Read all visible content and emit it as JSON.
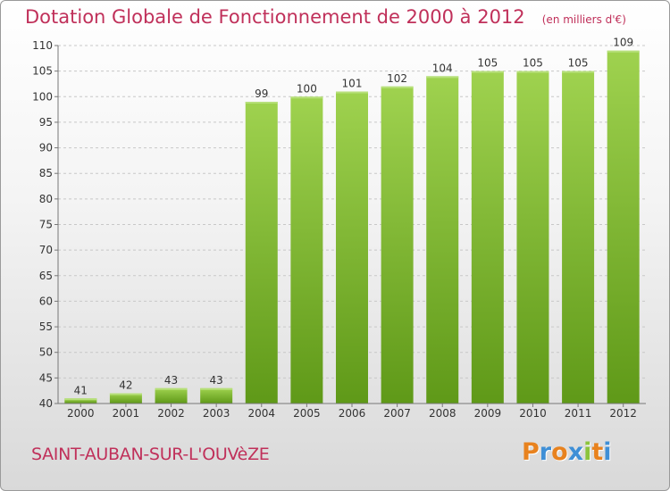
{
  "chart_data": {
    "type": "bar",
    "title": "Dotation Globale de Fonctionnement de 2000 à 2012",
    "unit": "(en milliers d'€)",
    "categories": [
      "2000",
      "2001",
      "2002",
      "2003",
      "2004",
      "2005",
      "2006",
      "2007",
      "2008",
      "2009",
      "2010",
      "2011",
      "2012"
    ],
    "values": [
      41,
      42,
      43,
      43,
      99,
      100,
      101,
      102,
      104,
      105,
      105,
      105,
      109
    ],
    "ylim": [
      40,
      110
    ],
    "yticks": [
      40,
      45,
      50,
      55,
      60,
      65,
      70,
      75,
      80,
      85,
      90,
      95,
      100,
      105,
      110
    ],
    "grid": "horizontal dashed",
    "bar_color": "#8cc43c",
    "bar_color_dark": "#5f9918"
  },
  "commune": "SAINT-AUBAN-SUR-L'OUVèZE",
  "logo": {
    "letters": [
      "P",
      "r",
      "o",
      "x",
      "i",
      "t",
      "i"
    ],
    "colors": [
      "#e8821e",
      "#3f8fd6",
      "#e8821e",
      "#3f8fd6",
      "#8cc43c",
      "#e8821e",
      "#3f8fd6"
    ]
  }
}
